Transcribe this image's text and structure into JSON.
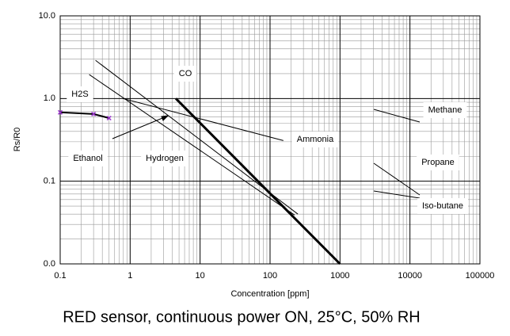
{
  "chart_data": {
    "type": "line",
    "x_label": "Concentration [ppm]",
    "y_label": "Rs/R0",
    "caption": "RED sensor, continuous power ON, 25°C, 50% RH",
    "log_x": true,
    "log_y": true,
    "grid": true,
    "minor_grid": true,
    "xlim": [
      0.1,
      100000
    ],
    "xticks": [
      0.1,
      1,
      10,
      100,
      1000,
      10000,
      100000
    ],
    "ylim": [
      0.01,
      10
    ],
    "yticks": [
      {
        "value": 0.01,
        "label": "0.0"
      },
      {
        "value": 0.1,
        "label": "0.1"
      },
      {
        "value": 1,
        "label": "1.0"
      },
      {
        "value": 10,
        "label": "10.0"
      }
    ],
    "series": [
      {
        "color": "#000000",
        "width": 3,
        "x": [
          4.5,
          1000
        ],
        "values": [
          1.0,
          0.01
        ]
      },
      {
        "color": "#000000",
        "width": 1,
        "x": [
          0.32,
          250
        ],
        "values": [
          2.9,
          0.04
        ]
      },
      {
        "color": "#000000",
        "width": 1,
        "x": [
          0.26,
          224
        ],
        "values": [
          1.95,
          0.039
        ]
      },
      {
        "color": "#000000",
        "width": 1,
        "x": [
          0.79,
          155
        ],
        "values": [
          1.0,
          0.31
        ]
      },
      {
        "color": "#000000",
        "width": 2,
        "markers": true,
        "marker_color": "#9933cc",
        "x": [
          0.1,
          0.3,
          0.5
        ],
        "values": [
          0.68,
          0.65,
          0.58
        ]
      }
    ],
    "annotations": [
      "CO",
      "H2S",
      "Ammonia",
      "Ethanol",
      "Hydrogen",
      "Methane",
      "Propane",
      "Iso-butane"
    ]
  }
}
